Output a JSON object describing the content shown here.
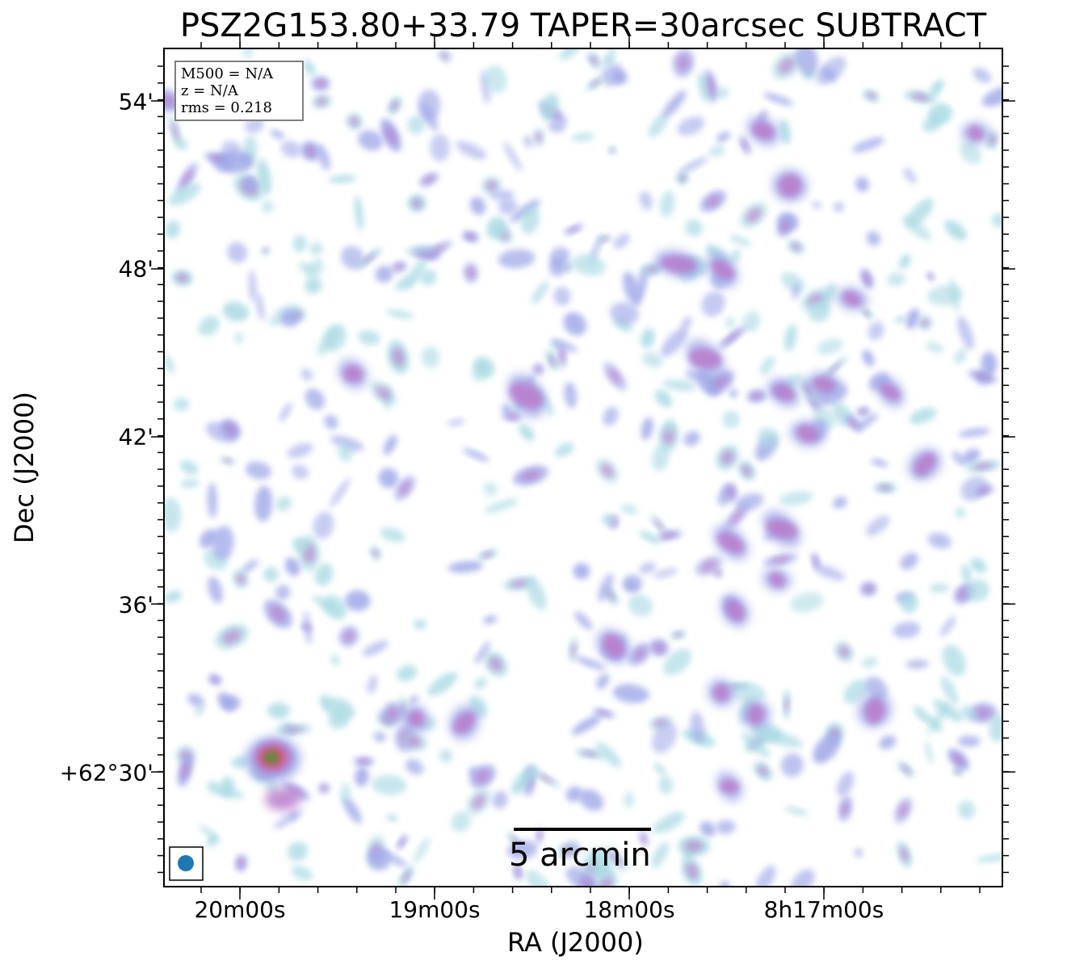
{
  "title": "PSZ2G153.80+33.79 TAPER=30arcsec SUBTRACT",
  "axes": {
    "xlabel": "RA (J2000)",
    "ylabel": "Dec (J2000)",
    "xticks": [
      "20m00s",
      "19m00s",
      "18m00s",
      "8h17m00s"
    ],
    "yticks": [
      "54'",
      "48'",
      "42'",
      "36'",
      "+62°30'"
    ]
  },
  "info": {
    "m500": "M500 = N/A",
    "z": "z = N/A",
    "rms": "rms = 0.218"
  },
  "scalebar": {
    "label": "5 arcmin"
  },
  "colors": {
    "faint": "#a9d9e3",
    "low": "#9fa7e8",
    "mid": "#b97ccc",
    "high": "#cf5a7a",
    "peak": "#5e8a3a",
    "beam": "#1f77b4",
    "frame": "#000000"
  }
}
